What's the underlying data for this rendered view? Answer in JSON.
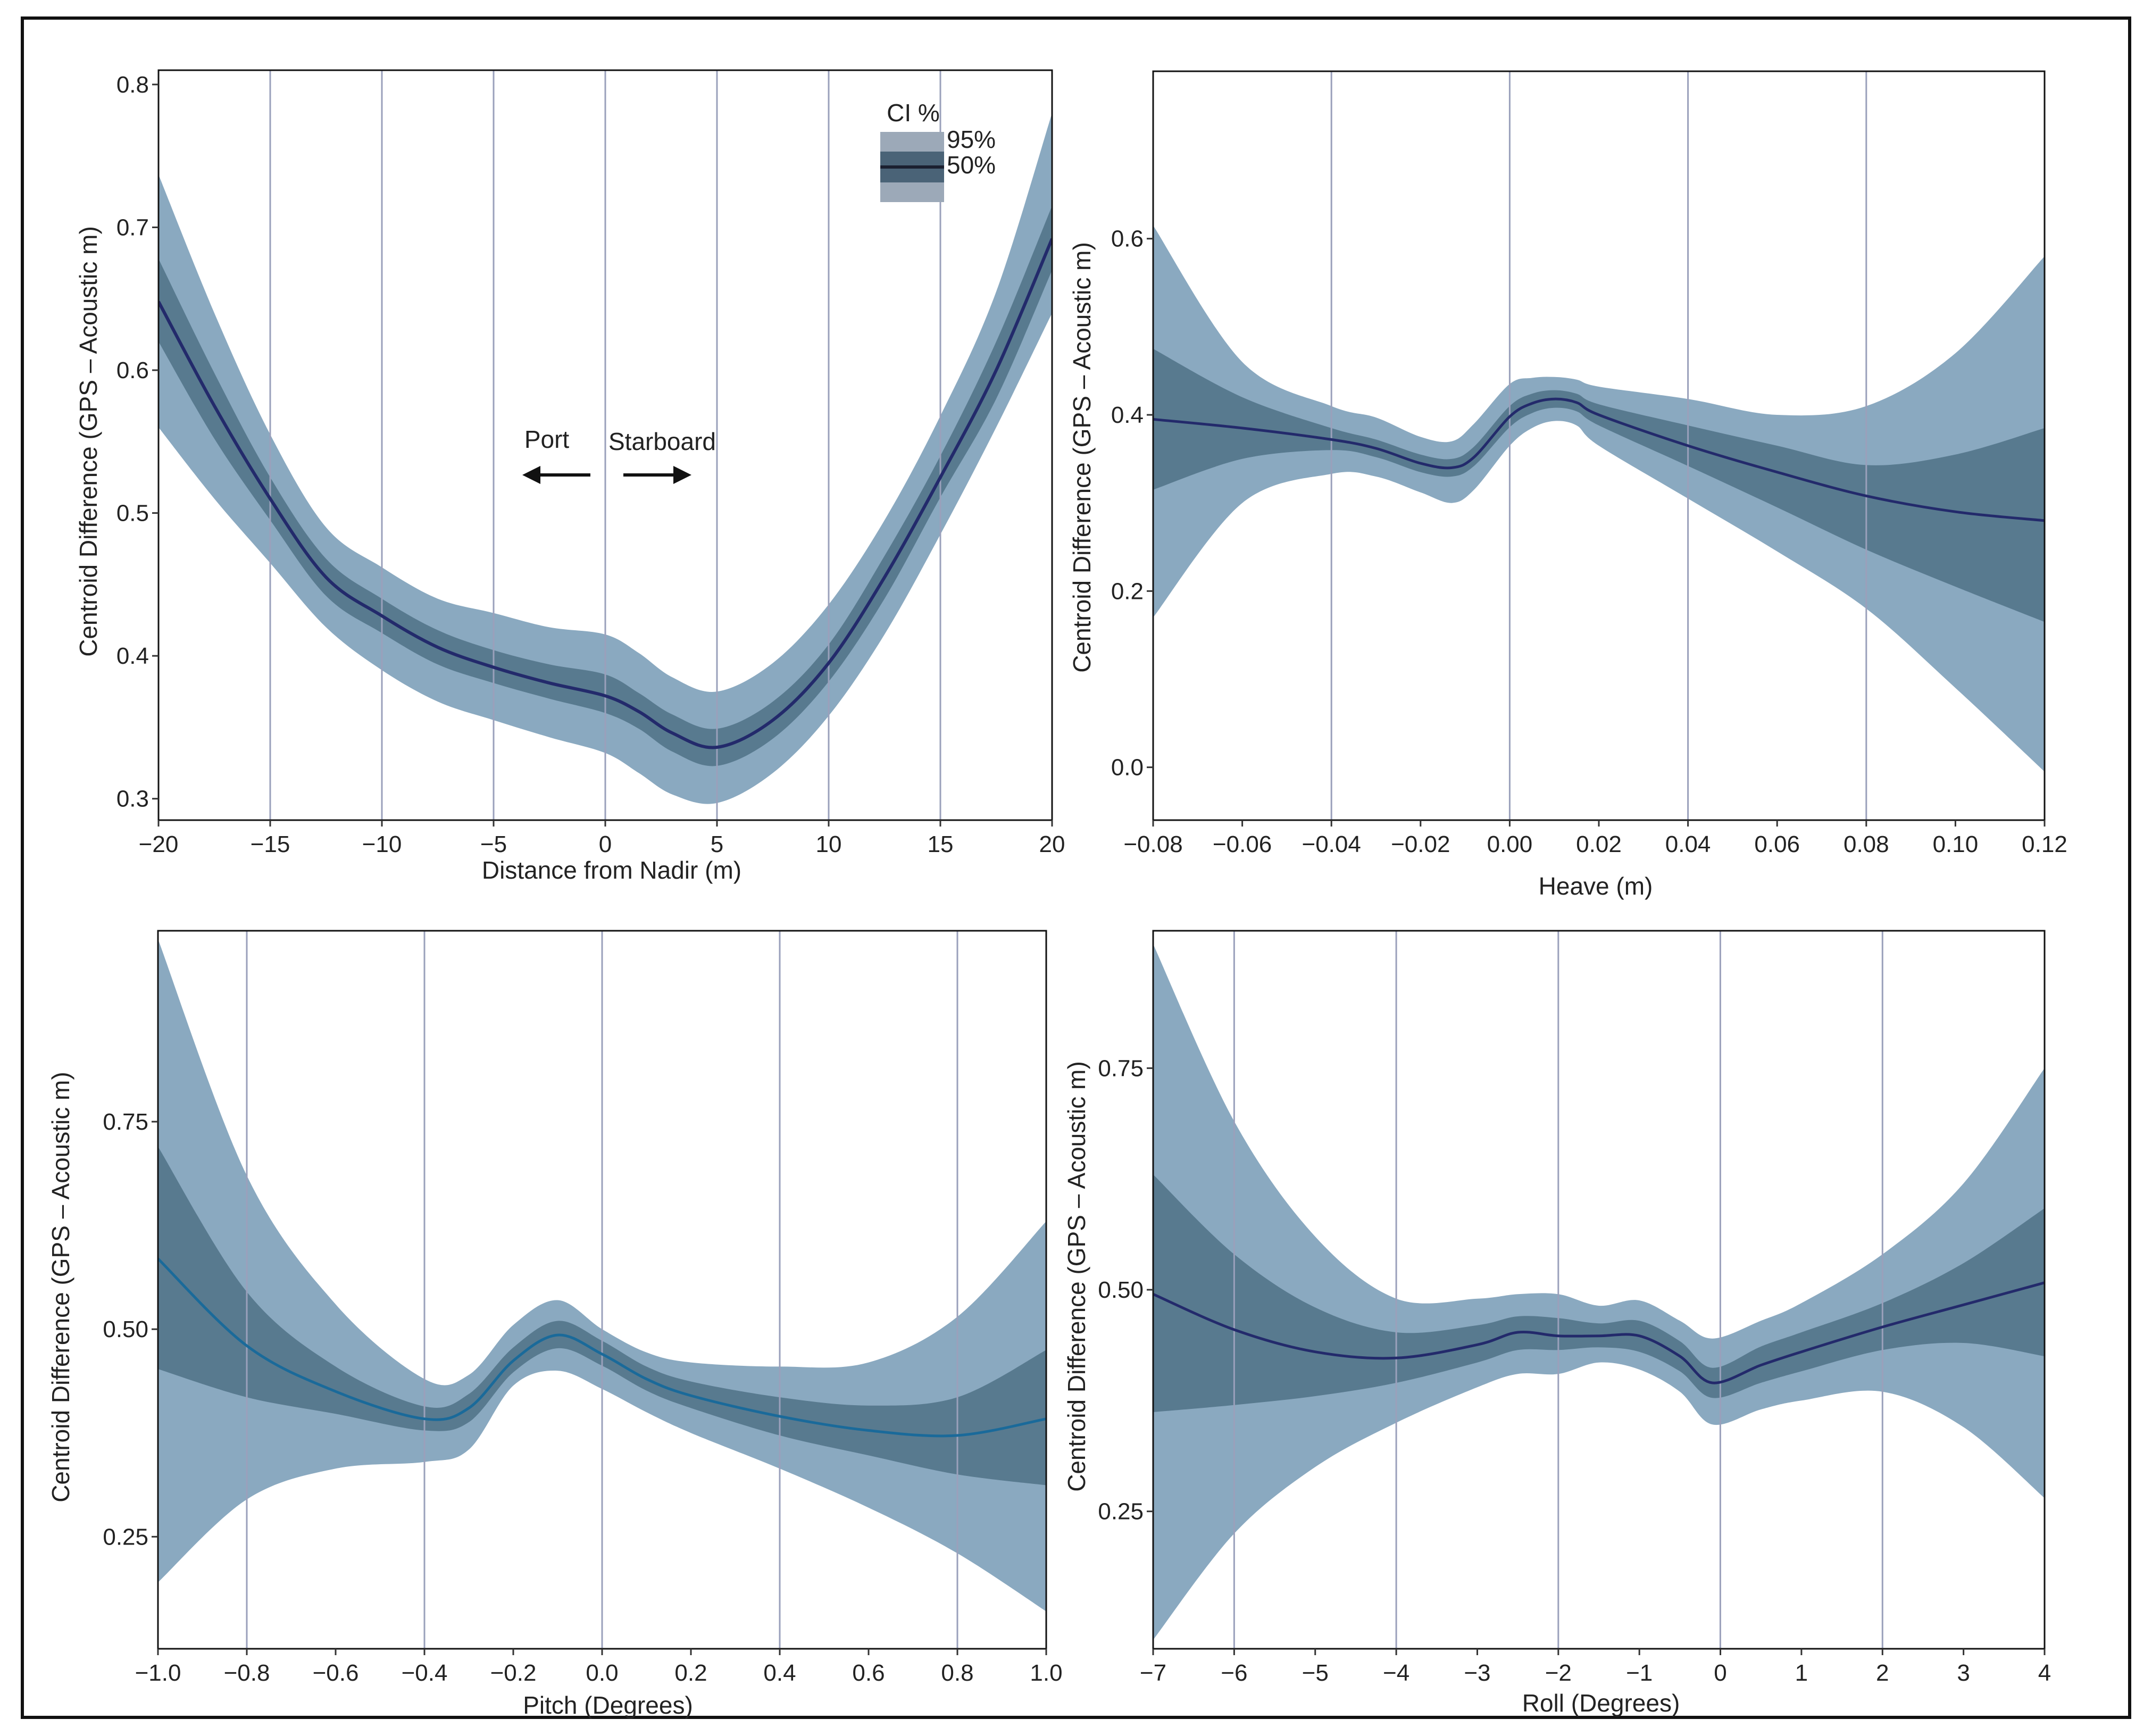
{
  "colors": {
    "band95": "#8aa9c0",
    "band50": "#587a8f",
    "mean_dark": "#232a6b",
    "mean_blue": "#1a6a9a",
    "gridline": "#9aa0bb",
    "legend_outer": "#9ca9b8",
    "legend_inner": "#4a6377",
    "frame": "#111111"
  },
  "legend": {
    "title": "CI %",
    "items": [
      "95%",
      "50%"
    ]
  },
  "annotations": {
    "port": "Port",
    "starboard": "Starboard"
  },
  "chart_data": [
    {
      "id": "distance",
      "type": "area",
      "title": "",
      "xlabel": "Distance from Nadir (m)",
      "ylabel": "Centroid Difference (GPS – Acoustic m)",
      "xlim": [
        -20,
        20
      ],
      "ylim": [
        0.285,
        0.81
      ],
      "xticks": [
        -20,
        -15,
        -10,
        -5,
        0,
        5,
        10,
        15,
        20
      ],
      "xtick_labels": [
        "−20",
        "−15",
        "−10",
        "−5",
        "0",
        "5",
        "10",
        "15",
        "20"
      ],
      "yticks": [
        0.3,
        0.4,
        0.5,
        0.6,
        0.7,
        0.8
      ],
      "ytick_labels": [
        "0.3",
        "0.4",
        "0.5",
        "0.6",
        "0.7",
        "0.8"
      ],
      "vlines": [
        -15,
        -10,
        -5,
        0,
        5,
        10,
        15
      ],
      "mean_color": "mean_dark",
      "mean_width": 6,
      "x": [
        -20,
        -17.5,
        -15,
        -12.5,
        -10,
        -7.5,
        -5,
        -2.5,
        0,
        1.5,
        3,
        5,
        7.5,
        10,
        12.5,
        15,
        17.5,
        20
      ],
      "mean": [
        0.648,
        0.575,
        0.51,
        0.455,
        0.428,
        0.406,
        0.392,
        0.381,
        0.372,
        0.361,
        0.346,
        0.336,
        0.355,
        0.395,
        0.455,
        0.525,
        0.6,
        0.692
      ],
      "ci95_low": [
        0.56,
        0.51,
        0.465,
        0.42,
        0.39,
        0.368,
        0.355,
        0.343,
        0.332,
        0.318,
        0.303,
        0.297,
        0.318,
        0.358,
        0.415,
        0.485,
        0.56,
        0.64
      ],
      "ci95_high": [
        0.737,
        0.64,
        0.555,
        0.49,
        0.462,
        0.44,
        0.43,
        0.42,
        0.415,
        0.402,
        0.385,
        0.375,
        0.395,
        0.436,
        0.495,
        0.568,
        0.655,
        0.78
      ],
      "ci50_low": [
        0.62,
        0.552,
        0.495,
        0.442,
        0.416,
        0.394,
        0.381,
        0.37,
        0.36,
        0.349,
        0.333,
        0.323,
        0.342,
        0.382,
        0.44,
        0.511,
        0.58,
        0.67
      ],
      "ci50_high": [
        0.678,
        0.598,
        0.525,
        0.468,
        0.44,
        0.418,
        0.404,
        0.394,
        0.387,
        0.374,
        0.359,
        0.349,
        0.368,
        0.408,
        0.47,
        0.54,
        0.62,
        0.715
      ]
    },
    {
      "id": "heave",
      "type": "area",
      "title": "",
      "xlabel": "Heave (m)",
      "ylabel": "Centroid Difference (GPS – Acoustic m)",
      "xlim": [
        -0.08,
        0.12
      ],
      "ylim": [
        -0.06,
        0.79
      ],
      "xticks": [
        -0.08,
        -0.06,
        -0.04,
        -0.02,
        0.0,
        0.02,
        0.04,
        0.06,
        0.08,
        0.1,
        0.12
      ],
      "xtick_labels": [
        "−0.08",
        "−0.06",
        "−0.04",
        "−0.02",
        "0.00",
        "0.02",
        "0.04",
        "0.06",
        "0.08",
        "0.10",
        "0.12"
      ],
      "yticks": [
        0.0,
        0.2,
        0.4,
        0.6
      ],
      "ytick_labels": [
        "0.0",
        "0.2",
        "0.4",
        "0.6"
      ],
      "vlines": [
        -0.04,
        0.0,
        0.04,
        0.08
      ],
      "mean_color": "mean_dark",
      "mean_width": 5,
      "x": [
        -0.08,
        -0.06,
        -0.04,
        -0.03,
        -0.02,
        -0.013,
        -0.008,
        0.0,
        0.005,
        0.01,
        0.015,
        0.02,
        0.04,
        0.06,
        0.08,
        0.1,
        0.12
      ],
      "mean": [
        0.395,
        0.385,
        0.372,
        0.362,
        0.345,
        0.34,
        0.352,
        0.398,
        0.413,
        0.418,
        0.414,
        0.4,
        0.365,
        0.335,
        0.308,
        0.29,
        0.28
      ],
      "ci95_low": [
        0.17,
        0.3,
        0.333,
        0.33,
        0.312,
        0.3,
        0.315,
        0.365,
        0.385,
        0.393,
        0.388,
        0.365,
        0.305,
        0.245,
        0.18,
        0.09,
        -0.005
      ],
      "ci95_high": [
        0.615,
        0.46,
        0.41,
        0.397,
        0.375,
        0.37,
        0.39,
        0.435,
        0.442,
        0.443,
        0.44,
        0.432,
        0.418,
        0.4,
        0.41,
        0.47,
        0.58
      ],
      "ci50_low": [
        0.315,
        0.35,
        0.36,
        0.352,
        0.335,
        0.33,
        0.342,
        0.386,
        0.402,
        0.408,
        0.404,
        0.388,
        0.342,
        0.295,
        0.247,
        0.205,
        0.165
      ],
      "ci50_high": [
        0.475,
        0.42,
        0.385,
        0.372,
        0.355,
        0.35,
        0.364,
        0.41,
        0.424,
        0.428,
        0.424,
        0.412,
        0.388,
        0.365,
        0.343,
        0.355,
        0.385
      ]
    },
    {
      "id": "pitch",
      "type": "area",
      "title": "",
      "xlabel": "Pitch (Degrees)",
      "ylabel": "Centroid Difference (GPS – Acoustic m)",
      "xlim": [
        -1.0,
        1.0
      ],
      "ylim": [
        0.115,
        0.98
      ],
      "xticks": [
        -1.0,
        -0.8,
        -0.6,
        -0.4,
        -0.2,
        0.0,
        0.2,
        0.4,
        0.6,
        0.8,
        1.0
      ],
      "xtick_labels": [
        "−1.0",
        "−0.8",
        "−0.6",
        "−0.4",
        "−0.2",
        "0.0",
        "0.2",
        "0.4",
        "0.6",
        "0.8",
        "1.0"
      ],
      "yticks": [
        0.25,
        0.5,
        0.75
      ],
      "ytick_labels": [
        "0.25",
        "0.50",
        "0.75"
      ],
      "vlines": [
        -0.8,
        -0.4,
        0.0,
        0.4,
        0.8
      ],
      "mean_color": "mean_blue",
      "mean_width": 5,
      "x": [
        -1.0,
        -0.8,
        -0.6,
        -0.4,
        -0.3,
        -0.2,
        -0.1,
        0.0,
        0.1,
        0.2,
        0.4,
        0.6,
        0.8,
        1.0
      ],
      "mean": [
        0.585,
        0.48,
        0.425,
        0.392,
        0.405,
        0.462,
        0.493,
        0.47,
        0.44,
        0.42,
        0.395,
        0.378,
        0.372,
        0.392
      ],
      "ci95_low": [
        0.195,
        0.295,
        0.332,
        0.34,
        0.355,
        0.432,
        0.45,
        0.428,
        0.4,
        0.375,
        0.332,
        0.285,
        0.23,
        0.16
      ],
      "ci95_high": [
        0.97,
        0.685,
        0.53,
        0.44,
        0.445,
        0.505,
        0.535,
        0.5,
        0.472,
        0.46,
        0.455,
        0.46,
        0.515,
        0.63
      ],
      "ci50_low": [
        0.452,
        0.418,
        0.398,
        0.378,
        0.388,
        0.448,
        0.477,
        0.456,
        0.426,
        0.405,
        0.372,
        0.348,
        0.325,
        0.312
      ],
      "ci50_high": [
        0.72,
        0.545,
        0.455,
        0.407,
        0.422,
        0.478,
        0.51,
        0.486,
        0.455,
        0.437,
        0.418,
        0.408,
        0.418,
        0.475
      ]
    },
    {
      "id": "roll",
      "type": "area",
      "title": "",
      "xlabel": "Roll (Degrees)",
      "ylabel": "Centroid Difference (GPS – Acoustic m)",
      "xlim": [
        -7,
        4
      ],
      "ylim": [
        0.095,
        0.905
      ],
      "xticks": [
        -7,
        -6,
        -5,
        -4,
        -3,
        -2,
        -1,
        0,
        1,
        2,
        3,
        4
      ],
      "xtick_labels": [
        "−7",
        "−6",
        "−5",
        "−4",
        "−3",
        "−2",
        "−1",
        "0",
        "1",
        "2",
        "3",
        "4"
      ],
      "yticks": [
        0.25,
        0.5,
        0.75
      ],
      "ytick_labels": [
        "0.25",
        "0.50",
        "0.75"
      ],
      "vlines": [
        -6,
        -4,
        -2,
        -0.001,
        2
      ],
      "mean_color": "mean_dark",
      "mean_width": 5,
      "x": [
        -7,
        -6,
        -5,
        -4,
        -3,
        -2.5,
        -2,
        -1.5,
        -1,
        -0.5,
        -0.1,
        0.5,
        1,
        2,
        3,
        4
      ],
      "mean": [
        0.495,
        0.455,
        0.43,
        0.423,
        0.438,
        0.452,
        0.448,
        0.448,
        0.448,
        0.425,
        0.395,
        0.415,
        0.43,
        0.458,
        0.483,
        0.508
      ],
      "ci95_low": [
        0.105,
        0.225,
        0.3,
        0.35,
        0.39,
        0.405,
        0.405,
        0.418,
        0.41,
        0.385,
        0.348,
        0.365,
        0.375,
        0.385,
        0.345,
        0.265
      ],
      "ci95_high": [
        0.89,
        0.69,
        0.56,
        0.49,
        0.49,
        0.495,
        0.495,
        0.482,
        0.488,
        0.465,
        0.445,
        0.465,
        0.485,
        0.54,
        0.62,
        0.75
      ],
      "ci50_low": [
        0.362,
        0.37,
        0.38,
        0.395,
        0.418,
        0.432,
        0.432,
        0.435,
        0.43,
        0.408,
        0.378,
        0.395,
        0.408,
        0.432,
        0.44,
        0.425
      ],
      "ci50_high": [
        0.63,
        0.54,
        0.48,
        0.452,
        0.46,
        0.47,
        0.468,
        0.462,
        0.465,
        0.442,
        0.412,
        0.436,
        0.452,
        0.485,
        0.53,
        0.592
      ]
    }
  ]
}
